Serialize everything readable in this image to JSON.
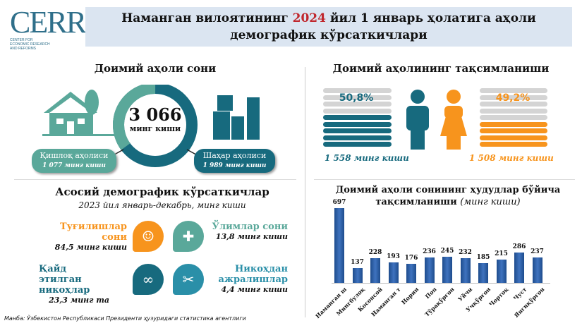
{
  "logo": {
    "text": "CERR",
    "subtitle": "CENTER FOR ECONOMIC RESEARCH AND REFORMS"
  },
  "header": {
    "title_part1": "Наманган вилоятининг ",
    "title_year": "2024",
    "title_part2": " йил 1 январь ҳолатига аҳоли",
    "title_line2": "демографик кўрсаткичлари"
  },
  "population": {
    "title": "Доимий аҳоли сони",
    "total": "3 066",
    "total_unit": "минг киши",
    "rural_label": "Қишлоқ аҳолиси",
    "rural_value": "1 077 минг киши",
    "urban_label": "Шаҳар аҳолиси",
    "urban_value": "1 989 минг киши",
    "rural_share": 35.1,
    "colors": {
      "rural": "#5aa89a",
      "urban": "#176a7e"
    }
  },
  "gender": {
    "title": "Доимий аҳолининг тақсимланиши",
    "male_pct": "50,8%",
    "female_pct": "49,2%",
    "male_value": "1 558 минг киши",
    "female_value": "1 508 минг киши",
    "colors": {
      "male": "#176a7e",
      "female": "#f7941d"
    }
  },
  "demographics": {
    "title": "Асосий демографик кўрсаткичлар",
    "subtitle": "2023 йил январь-декабрь, минг киши",
    "births_label": "Туғилишлар сони",
    "births_value": "84,5 минг киши",
    "deaths_label": "Ўлимлар сони",
    "deaths_value": "13,8 минг киши",
    "marriages_label1": "Қайд этилган",
    "marriages_label2": "никоҳлар",
    "marriages_value": "23,3 минг та",
    "divorces_label1": "Никоҳдан",
    "divorces_label2": "ажралишлар",
    "divorces_value": "4,4 минг киши"
  },
  "chart_data": {
    "type": "bar",
    "title": "Доимий аҳоли сонининг ҳудудлар бўйича",
    "title_line2": "тақсимланиши",
    "unit": "(минг киши)",
    "categories": [
      "Наманган ш",
      "Мингбулоқ",
      "Косонсой",
      "Наманган т",
      "Норин",
      "Поп",
      "Тўрақўрғон",
      "Уйчи",
      "Учқўрғон",
      "Чортоқ",
      "Чуст",
      "Янгиқўрғон"
    ],
    "values": [
      697,
      137,
      228,
      193,
      176,
      236,
      245,
      232,
      185,
      215,
      286,
      237
    ],
    "color": "#2e5fa8"
  },
  "source": "Манба: Ўзбекистон Республикаси Президенти ҳузуридаги статистика агентлиги"
}
